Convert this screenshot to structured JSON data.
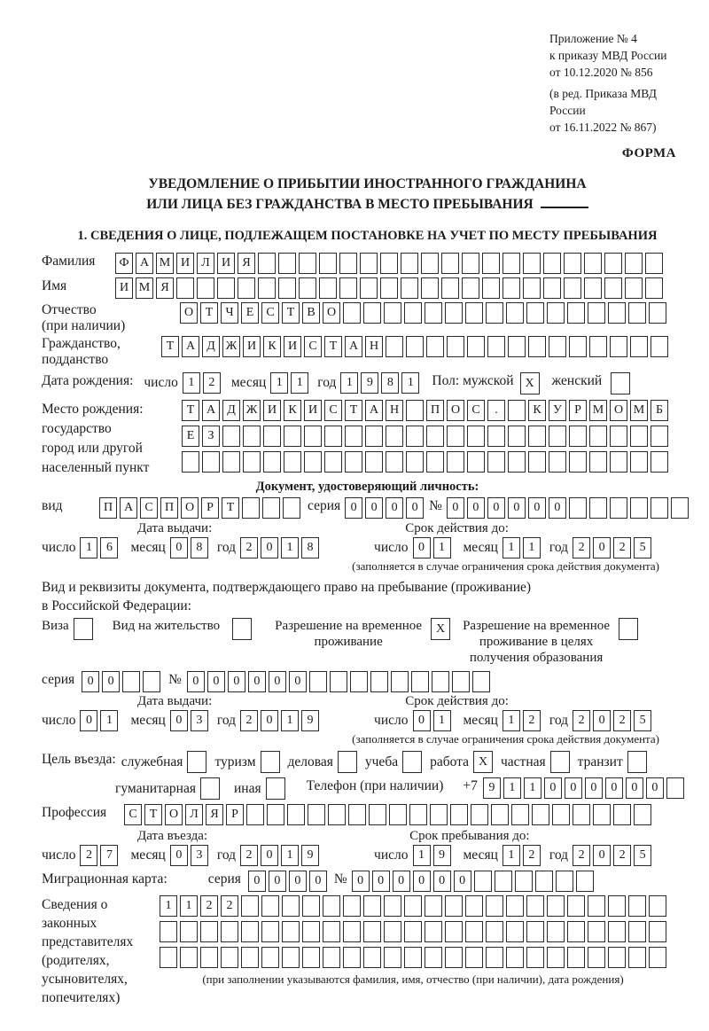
{
  "colors": {
    "ink": "#1c1c1c",
    "border": "#2b2b2b"
  },
  "header": {
    "appendix": [
      "Приложение № 4",
      "к приказу МВД России",
      "от 10.12.2020 № 856"
    ],
    "revision": [
      "(в ред. Приказа МВД России",
      "от 16.11.2022 № 867)"
    ],
    "forma": "ФОРМА"
  },
  "title": {
    "line1": "УВЕДОМЛЕНИЕ О ПРИБЫТИИ ИНОСТРАННОГО ГРАЖДАНИНА",
    "line2": "ИЛИ ЛИЦА БЕЗ ГРАЖДАНСТВА В МЕСТО ПРЕБЫВАНИЯ"
  },
  "section1_heading": "1. СВЕДЕНИЯ О ЛИЦЕ, ПОДЛЕЖАЩЕМ ПОСТАНОВКЕ НА УЧЕТ ПО МЕСТУ ПРЕБЫВАНИЯ",
  "labels": {
    "surname": "Фамилия",
    "given_name": "Имя",
    "patronymic": [
      "Отчество",
      "(при наличии)"
    ],
    "citizenship": [
      "Гражданство,",
      "подданство"
    ],
    "birth_date": "Дата рождения:",
    "day": "число",
    "month": "месяц",
    "year": "год",
    "sex_male": "Пол: мужской",
    "sex_female": "женский",
    "birthplace": [
      "Место рождения:",
      "государство",
      "город или другой",
      "населенный пункт"
    ],
    "identity_doc_heading": "Документ, удостоверяющий личность:",
    "doc_kind": "вид",
    "series": "серия",
    "number_sign": "№",
    "issue_date": "Дата выдачи:",
    "valid_until": "Срок действия до:",
    "validity_note": "(заполняется в случае ограничения срока действия документа)",
    "residence_doc": [
      "Вид и реквизиты документа, подтверждающего право на пребывание (проживание)",
      "в Российской Федерации:"
    ],
    "visa": "Виза",
    "residence_permit": "Вид на жительство",
    "temp_residence_permit": [
      "Разрешение на временное",
      "проживание"
    ],
    "edu_residence_permit": [
      "Разрешение на временное",
      "проживание в целях",
      "получения образования"
    ],
    "visit_purpose": "Цель въезда:",
    "purpose_options": [
      "служебная",
      "туризм",
      "деловая",
      "учеба",
      "работа",
      "частная",
      "транзит"
    ],
    "purpose_options2": [
      "гуманитарная",
      "иная"
    ],
    "phone": "Телефон (при наличии)",
    "phone_prefix": "+7",
    "profession": "Профессия",
    "entry_date": "Дата въезда:",
    "stay_until": "Срок пребывания до:",
    "migration_card": "Миграционная карта:",
    "representatives": [
      "Сведения о",
      "законных",
      "представителях",
      "(родителях,",
      "усыновителях,",
      "попечителях)"
    ],
    "representatives_note": "(при заполнении указываются фамилия, имя, отчество (при наличии), дата рождения)"
  },
  "fields": {
    "surname": {
      "value": "ФАМИЛИЯ",
      "count": 27
    },
    "given_name": {
      "value": "ИМЯ",
      "count": 27
    },
    "patronymic": {
      "value": "ОТЧЕСТВО",
      "count": 24
    },
    "citizenship": {
      "value": "ТАДЖИКИСТАН",
      "count": 25
    },
    "birth_day": {
      "value": "12",
      "count": 2
    },
    "birth_month": {
      "value": "11",
      "count": 2
    },
    "birth_year": {
      "value": "1981",
      "count": 4
    },
    "sex_male": {
      "value": "X",
      "count": 1
    },
    "sex_female": {
      "value": "",
      "count": 1
    },
    "birthplace_row1": {
      "value": "ТАДЖИКИСТАН ПОС. КУРМОМБ",
      "count": 24
    },
    "birthplace_row2": {
      "value": "ЕЗ",
      "count": 24
    },
    "birthplace_row3": {
      "value": "",
      "count": 24
    },
    "doc_kind": {
      "value": "ПАСПОРТ",
      "count": 10
    },
    "doc_series": {
      "value": "0000",
      "count": 4
    },
    "doc_number": {
      "value": "000000",
      "count": 12
    },
    "doc_issue_day": {
      "value": "16",
      "count": 2
    },
    "doc_issue_month": {
      "value": "08",
      "count": 2
    },
    "doc_issue_year": {
      "value": "2018",
      "count": 4
    },
    "doc_valid_day": {
      "value": "01",
      "count": 2
    },
    "doc_valid_month": {
      "value": "11",
      "count": 2
    },
    "doc_valid_year": {
      "value": "2025",
      "count": 4
    },
    "visa_checkbox": {
      "value": "",
      "count": 1
    },
    "residence_permit_checkbox": {
      "value": "",
      "count": 1
    },
    "temp_permit_checkbox": {
      "value": "X",
      "count": 1
    },
    "edu_permit_checkbox": {
      "value": "",
      "count": 1
    },
    "permit_series": {
      "value": "00",
      "count": 4
    },
    "permit_number": {
      "value": "000000",
      "count": 15
    },
    "permit_issue_day": {
      "value": "01",
      "count": 2
    },
    "permit_issue_month": {
      "value": "03",
      "count": 2
    },
    "permit_issue_year": {
      "value": "2019",
      "count": 4
    },
    "permit_valid_day": {
      "value": "01",
      "count": 2
    },
    "permit_valid_month": {
      "value": "12",
      "count": 2
    },
    "permit_valid_year": {
      "value": "2025",
      "count": 4
    },
    "purpose": [
      {
        "value": "",
        "count": 1
      },
      {
        "value": "",
        "count": 1
      },
      {
        "value": "",
        "count": 1
      },
      {
        "value": "",
        "count": 1
      },
      {
        "value": "X",
        "count": 1
      },
      {
        "value": "",
        "count": 1
      },
      {
        "value": "",
        "count": 1
      }
    ],
    "purpose2": [
      {
        "value": "",
        "count": 1
      },
      {
        "value": "",
        "count": 1
      }
    ],
    "phone": {
      "value": "911000000",
      "count": 10
    },
    "profession": {
      "value": "СТОЛЯР",
      "count": 26
    },
    "entry_day": {
      "value": "27",
      "count": 2
    },
    "entry_month": {
      "value": "03",
      "count": 2
    },
    "entry_year": {
      "value": "2019",
      "count": 4
    },
    "stay_day": {
      "value": "19",
      "count": 2
    },
    "stay_month": {
      "value": "12",
      "count": 2
    },
    "stay_year": {
      "value": "2025",
      "count": 4
    },
    "migration_series": {
      "value": "0000",
      "count": 4
    },
    "migration_number": {
      "value": "000000",
      "count": 12
    },
    "representatives_row1": {
      "value": "1122",
      "count": 25
    },
    "representatives_row2": {
      "value": "",
      "count": 25
    },
    "representatives_row3": {
      "value": "",
      "count": 25
    }
  }
}
